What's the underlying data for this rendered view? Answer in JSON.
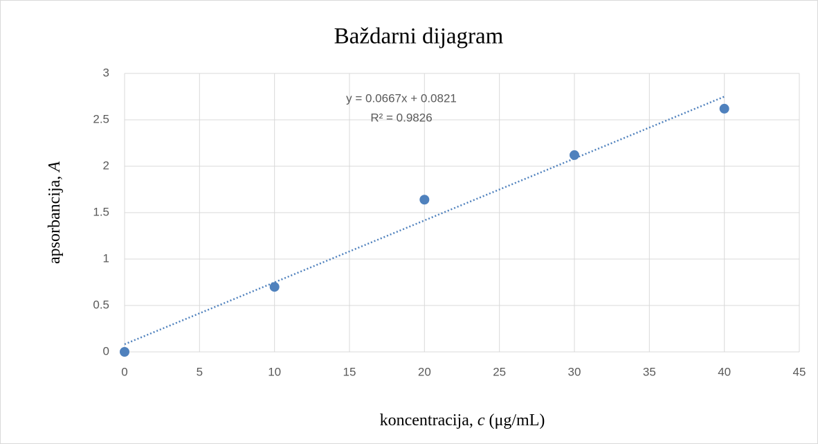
{
  "chart_data": {
    "type": "scatter",
    "title": "Baždarni dijagram",
    "x_label": [
      "koncentracija, ",
      "c",
      " (μg/mL)"
    ],
    "y_label": [
      "apsorbancija, ",
      "A"
    ],
    "x": [
      0,
      10,
      20,
      30,
      40
    ],
    "series": [
      {
        "color": "#4f81bd",
        "values": [
          0,
          0.7,
          1.64,
          2.12,
          2.62
        ]
      }
    ],
    "trendline": {
      "slope": 0.0667,
      "intercept": 0.0821,
      "equation": "y = 0.0667x + 0.0821",
      "r_squared": "R² = 0.9826",
      "color": "#4f81bd"
    },
    "xlim": [
      0,
      45
    ],
    "xticks": [
      0,
      5,
      10,
      15,
      20,
      25,
      30,
      35,
      40,
      45
    ],
    "ylim": [
      0,
      3
    ],
    "yticks": [
      0,
      0.5,
      1,
      1.5,
      2,
      2.5,
      3
    ],
    "grid": true
  }
}
